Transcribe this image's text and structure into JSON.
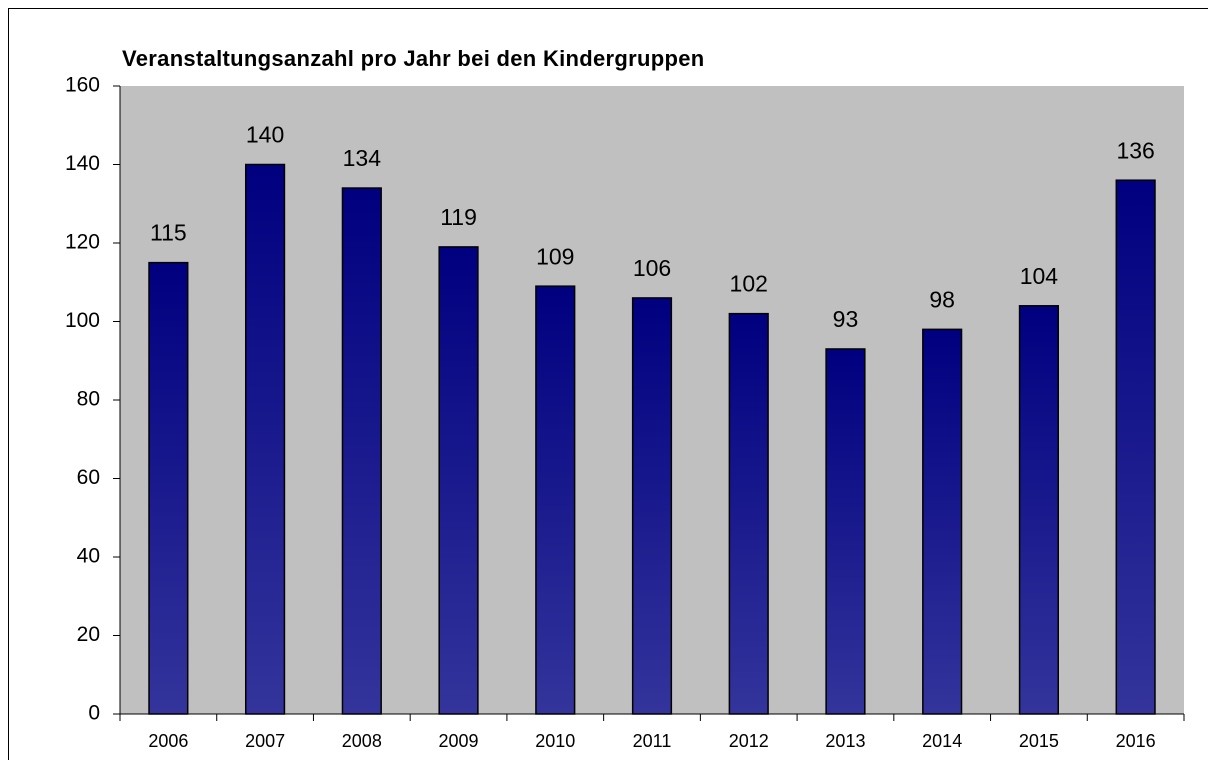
{
  "chart_data": {
    "type": "bar",
    "title": "Veranstaltungsanzahl pro Jahr bei den Kindergruppen",
    "categories": [
      "2006",
      "2007",
      "2008",
      "2009",
      "2010",
      "2011",
      "2012",
      "2013",
      "2014",
      "2015",
      "2016"
    ],
    "values": [
      115,
      140,
      134,
      119,
      109,
      106,
      102,
      93,
      98,
      104,
      136
    ],
    "color": "#000080",
    "ylim": [
      0,
      160
    ],
    "yticks": [
      0,
      20,
      40,
      60,
      80,
      100,
      120,
      140,
      160
    ],
    "grid": false
  }
}
